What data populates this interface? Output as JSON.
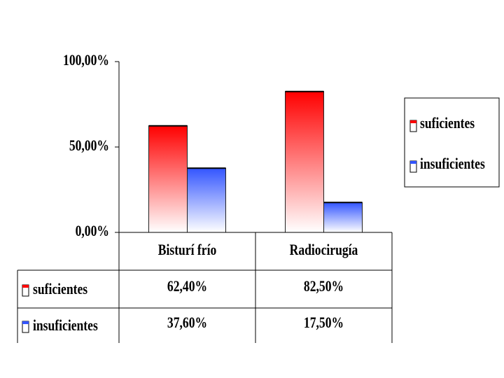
{
  "chart_data": {
    "type": "bar",
    "categories": [
      "Bisturí frío",
      "Radiocirugía"
    ],
    "series": [
      {
        "name": "suficientes",
        "color": "#ff0000",
        "values": [
          62.4,
          82.5
        ],
        "value_labels": [
          "62,40%",
          "82,50%"
        ]
      },
      {
        "name": "insuficientes",
        "color": "#3355ff",
        "values": [
          37.6,
          17.5
        ],
        "value_labels": [
          "37,60%",
          "17,50%"
        ]
      }
    ],
    "ylim": [
      0,
      100
    ],
    "yticks": [
      {
        "value": 0,
        "label": "0,00%"
      },
      {
        "value": 50,
        "label": "50,00%"
      },
      {
        "value": 100,
        "label": "100,00%"
      }
    ],
    "legend": "right"
  }
}
